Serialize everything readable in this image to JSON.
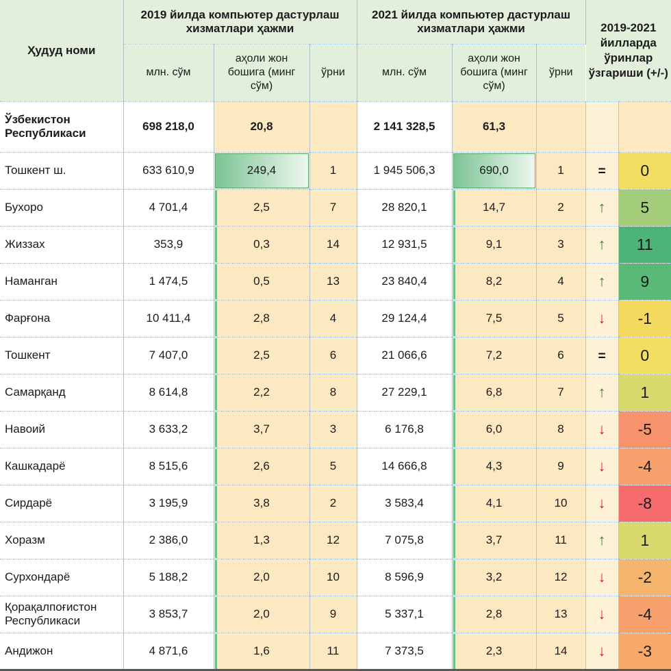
{
  "header": {
    "region_col": "Ҳудуд номи",
    "group_2019": "2019 йилда компьютер дастурлаш хизматлари ҳажми",
    "group_2021": "2021 йилда компьютер дастурлаш хизматлари ҳажми",
    "group_change": "2019-2021 йилларда ўринлар ўзгариши (+/-)",
    "sub_mln": "млн. сўм",
    "sub_percap": "аҳоли жон бошига (минг сўм)",
    "sub_rank": "ўрни"
  },
  "dir_symbols": {
    "up": "↑",
    "down": "↓",
    "eq": "="
  },
  "colors": {
    "header_bg": "#e2efdb",
    "cream_bg": "#fce9c2",
    "arrow_col_bg": "#fdf1d6",
    "bar_green": "#7cc495",
    "bar_border": "#5fa96c",
    "up_arrow": "#3f7d2f",
    "down_arrow": "#e01a1a"
  },
  "summary_row": {
    "name": "Ўзбекистон Республикаси",
    "v2019": "698 218,0",
    "p2019": "20,8",
    "r2019": "",
    "v2021": "2 141 328,5",
    "p2021": "61,3",
    "r2021": "",
    "dir": "",
    "change": "",
    "change_color": ""
  },
  "rows": [
    {
      "name": "Тошкент ш.",
      "v2019": "633 610,9",
      "p2019": "249,4",
      "p2019_num": 249.4,
      "r2019": "1",
      "v2021": "1 945 506,3",
      "p2021": "690,0",
      "p2021_num": 690.0,
      "r2021": "1",
      "dir": "eq",
      "change": "0",
      "change_color": "#f2de60"
    },
    {
      "name": "Бухоро",
      "v2019": "4 701,4",
      "p2019": "2,5",
      "p2019_num": 2.5,
      "r2019": "7",
      "v2021": "28 820,1",
      "p2021": "14,7",
      "p2021_num": 14.7,
      "r2021": "2",
      "dir": "up",
      "change": "5",
      "change_color": "#a3cd7b"
    },
    {
      "name": "Жиззах",
      "v2019": "353,9",
      "p2019": "0,3",
      "p2019_num": 0.3,
      "r2019": "14",
      "v2021": "12 931,5",
      "p2021": "9,1",
      "p2021_num": 9.1,
      "r2021": "3",
      "dir": "up",
      "change": "11",
      "change_color": "#4cb476"
    },
    {
      "name": "Наманган",
      "v2019": "1 474,5",
      "p2019": "0,5",
      "p2019_num": 0.5,
      "r2019": "13",
      "v2021": "23 840,4",
      "p2021": "8,2",
      "p2021_num": 8.2,
      "r2021": "4",
      "dir": "up",
      "change": "9",
      "change_color": "#5bb977"
    },
    {
      "name": "Фарғона",
      "v2019": "10 411,4",
      "p2019": "2,8",
      "p2019_num": 2.8,
      "r2019": "4",
      "v2021": "29 124,4",
      "p2021": "7,5",
      "p2021_num": 7.5,
      "r2021": "5",
      "dir": "down",
      "change": "-1",
      "change_color": "#f4d95f"
    },
    {
      "name": "Тошкент",
      "v2019": "7 407,0",
      "p2019": "2,5",
      "p2019_num": 2.5,
      "r2019": "6",
      "v2021": "21 066,6",
      "p2021": "7,2",
      "p2021_num": 7.2,
      "r2021": "6",
      "dir": "eq",
      "change": "0",
      "change_color": "#f2de60"
    },
    {
      "name": "Самарқанд",
      "v2019": "8 614,8",
      "p2019": "2,2",
      "p2019_num": 2.2,
      "r2019": "8",
      "v2021": "27 229,1",
      "p2021": "6,8",
      "p2021_num": 6.8,
      "r2021": "7",
      "dir": "up",
      "change": "1",
      "change_color": "#d9da6e"
    },
    {
      "name": "Навоий",
      "v2019": "3 633,2",
      "p2019": "3,7",
      "p2019_num": 3.7,
      "r2019": "3",
      "v2021": "6 176,8",
      "p2021": "6,0",
      "p2021_num": 6.0,
      "r2021": "8",
      "dir": "down",
      "change": "-5",
      "change_color": "#f6926c"
    },
    {
      "name": "Кашкадарё",
      "v2019": "8 515,6",
      "p2019": "2,6",
      "p2019_num": 2.6,
      "r2019": "5",
      "v2021": "14 666,8",
      "p2021": "4,3",
      "p2021_num": 4.3,
      "r2021": "9",
      "dir": "down",
      "change": "-4",
      "change_color": "#f7a06c"
    },
    {
      "name": "Сирдарё",
      "v2019": "3 195,9",
      "p2019": "3,8",
      "p2019_num": 3.8,
      "r2019": "2",
      "v2021": "3 583,4",
      "p2021": "4,1",
      "p2021_num": 4.1,
      "r2021": "10",
      "dir": "down",
      "change": "-8",
      "change_color": "#f66c6e"
    },
    {
      "name": "Хоразм",
      "v2019": "2 386,0",
      "p2019": "1,3",
      "p2019_num": 1.3,
      "r2019": "12",
      "v2021": "7 075,8",
      "p2021": "3,7",
      "p2021_num": 3.7,
      "r2021": "11",
      "dir": "up",
      "change": "1",
      "change_color": "#d9da6e"
    },
    {
      "name": "Сурхондарё",
      "v2019": "5 188,2",
      "p2019": "2,0",
      "p2019_num": 2.0,
      "r2019": "10",
      "v2021": "8 596,9",
      "p2021": "3,2",
      "p2021_num": 3.2,
      "r2021": "12",
      "dir": "down",
      "change": "-2",
      "change_color": "#f6b56c"
    },
    {
      "name": "Қорақалпоғистон Республикаси",
      "v2019": "3 853,7",
      "p2019": "2,0",
      "p2019_num": 2.0,
      "r2019": "9",
      "v2021": "5 337,1",
      "p2021": "2,8",
      "p2021_num": 2.8,
      "r2021": "13",
      "dir": "down",
      "change": "-4",
      "change_color": "#f7a06c"
    },
    {
      "name": "Андижон",
      "v2019": "4 871,6",
      "p2019": "1,6",
      "p2019_num": 1.6,
      "r2019": "11",
      "v2021": "7 373,5",
      "p2021": "2,3",
      "p2021_num": 2.3,
      "r2021": "14",
      "dir": "down",
      "change": "-3",
      "change_color": "#f6a96b"
    }
  ],
  "chart_data": {
    "type": "table",
    "title": "Компьютер дастурлаш хизматлари ҳажми (2019 ва 2021 йиллар)",
    "columns": [
      "Ҳудуд номи",
      "2019 млн. сўм",
      "2019 аҳоли жон бошига (минг сўм)",
      "2019 ўрни",
      "2021 млн. сўм",
      "2021 аҳоли жон бошига (минг сўм)",
      "2021 ўрни",
      "2019-2021 ўринлар ўзгариши (+/-)"
    ],
    "rows": [
      [
        "Ўзбекистон Республикаси",
        698218.0,
        20.8,
        null,
        2141328.5,
        61.3,
        null,
        null
      ],
      [
        "Тошкент ш.",
        633610.9,
        249.4,
        1,
        1945506.3,
        690.0,
        1,
        0
      ],
      [
        "Бухоро",
        4701.4,
        2.5,
        7,
        28820.1,
        14.7,
        2,
        5
      ],
      [
        "Жиззах",
        353.9,
        0.3,
        14,
        12931.5,
        9.1,
        3,
        11
      ],
      [
        "Наманган",
        1474.5,
        0.5,
        13,
        23840.4,
        8.2,
        4,
        9
      ],
      [
        "Фарғона",
        10411.4,
        2.8,
        4,
        29124.4,
        7.5,
        5,
        -1
      ],
      [
        "Тошкент",
        7407.0,
        2.5,
        6,
        21066.6,
        7.2,
        6,
        0
      ],
      [
        "Самарқанд",
        8614.8,
        2.2,
        8,
        27229.1,
        6.8,
        7,
        1
      ],
      [
        "Навоий",
        3633.2,
        3.7,
        3,
        6176.8,
        6.0,
        8,
        -5
      ],
      [
        "Кашкадарё",
        8515.6,
        2.6,
        5,
        14666.8,
        4.3,
        9,
        -4
      ],
      [
        "Сирдарё",
        3195.9,
        3.8,
        2,
        3583.4,
        4.1,
        10,
        -8
      ],
      [
        "Хоразм",
        2386.0,
        1.3,
        12,
        7075.8,
        3.7,
        11,
        1
      ],
      [
        "Сурхондарё",
        5188.2,
        2.0,
        10,
        8596.9,
        3.2,
        12,
        -2
      ],
      [
        "Қорақалпоғистон Республикаси",
        3853.7,
        2.0,
        9,
        5337.1,
        2.8,
        13,
        -4
      ],
      [
        "Андижон",
        4871.6,
        1.6,
        11,
        7373.5,
        2.3,
        14,
        -3
      ]
    ]
  }
}
